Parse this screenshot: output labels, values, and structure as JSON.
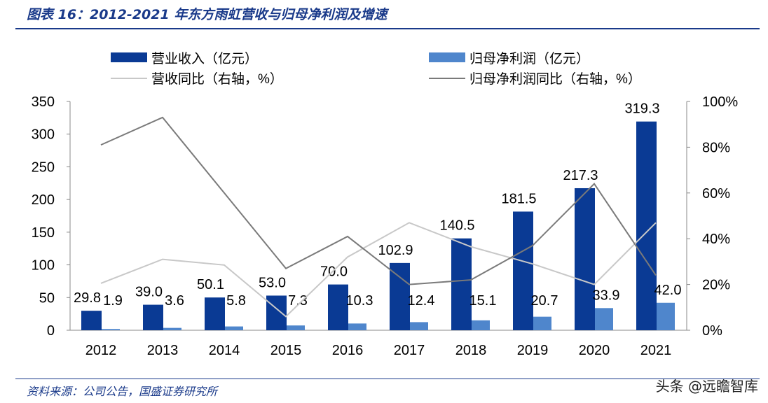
{
  "header": {
    "title": "图表 16：2012-2021 年东方雨虹营收与归母净利润及增速"
  },
  "footer": {
    "source": "资料来源：公司公告，国盛证券研究所",
    "watermark": "头条 @远瞻智库"
  },
  "chart_data": {
    "type": "bar",
    "categories": [
      "2012",
      "2013",
      "2014",
      "2015",
      "2016",
      "2017",
      "2018",
      "2019",
      "2020",
      "2021"
    ],
    "series": [
      {
        "name": "营业收入（亿元）",
        "kind": "bar",
        "axis": "left",
        "color": "#0a3a94",
        "values": [
          29.8,
          39.0,
          50.1,
          53.0,
          70.0,
          102.9,
          140.5,
          181.5,
          217.3,
          319.3
        ]
      },
      {
        "name": "归母净利润（亿元）",
        "kind": "bar",
        "axis": "left",
        "color": "#4f86cc",
        "values": [
          1.9,
          3.6,
          5.8,
          7.3,
          10.3,
          12.4,
          15.1,
          20.7,
          33.9,
          42.0
        ]
      },
      {
        "name": "营收同比（右轴，%）",
        "kind": "line",
        "axis": "right",
        "color": "#c8c8c8",
        "values": [
          20.5,
          31,
          28.5,
          6,
          32,
          47,
          36.5,
          29,
          20,
          47
        ]
      },
      {
        "name": "归母净利润同比（右轴，%）",
        "kind": "line",
        "axis": "right",
        "color": "#7a7a7a",
        "values": [
          81,
          93,
          60,
          27,
          41,
          20,
          22,
          37,
          64,
          24
        ]
      }
    ],
    "left_axis": {
      "ylim": [
        0,
        350
      ],
      "ticks": [
        "0",
        "50",
        "100",
        "150",
        "200",
        "250",
        "300",
        "350"
      ]
    },
    "right_axis": {
      "ylim": [
        0,
        100
      ],
      "ticks": [
        "0%",
        "20%",
        "40%",
        "60%",
        "80%",
        "100%"
      ]
    },
    "legend": "top",
    "grid": false
  }
}
